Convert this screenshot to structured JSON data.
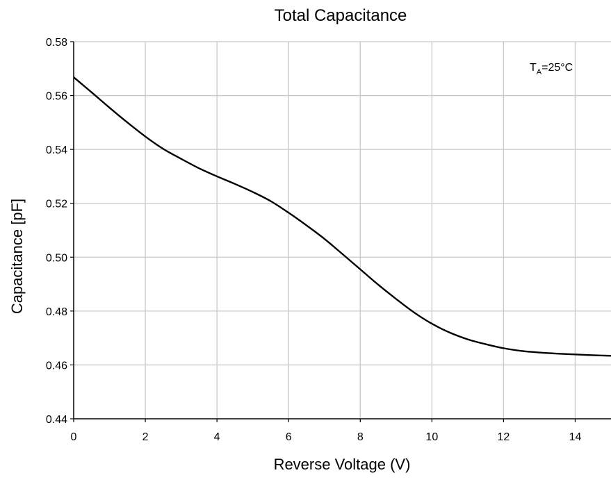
{
  "chart_data": {
    "type": "line",
    "title": "Total Capacitance",
    "xlabel": "Reverse Voltage (V)",
    "ylabel": "Capacitance [pF]",
    "xlim": [
      0,
      15
    ],
    "ylim": [
      0.44,
      0.58
    ],
    "x_ticks": [
      "0",
      "2",
      "4",
      "6",
      "8",
      "10",
      "12",
      "14"
    ],
    "y_ticks": [
      "0.44",
      "0.46",
      "0.48",
      "0.50",
      "0.52",
      "0.54",
      "0.56",
      "0.58"
    ],
    "grid": true,
    "annotation": {
      "main": "T",
      "subscript": "A",
      "rest": "=25°C"
    },
    "line_color": "#000000",
    "grid_color": "#c8c8c8",
    "series": [
      {
        "x": [
          0,
          0.5,
          1,
          1.5,
          2,
          2.5,
          3,
          3.5,
          4,
          4.5,
          5,
          5.5,
          6,
          6.5,
          7,
          7.5,
          8,
          8.5,
          9,
          9.5,
          10,
          10.5,
          11,
          11.5,
          12,
          12.5,
          13,
          13.5,
          14,
          14.5,
          15
        ],
        "y": [
          0.5668,
          0.5612,
          0.5555,
          0.55,
          0.5448,
          0.5402,
          0.5365,
          0.533,
          0.53,
          0.5272,
          0.5242,
          0.5208,
          0.5165,
          0.5118,
          0.5068,
          0.5012,
          0.4955,
          0.4898,
          0.4845,
          0.4795,
          0.4753,
          0.472,
          0.4695,
          0.4677,
          0.4662,
          0.4652,
          0.4646,
          0.4642,
          0.4639,
          0.4636,
          0.4634
        ]
      }
    ]
  }
}
